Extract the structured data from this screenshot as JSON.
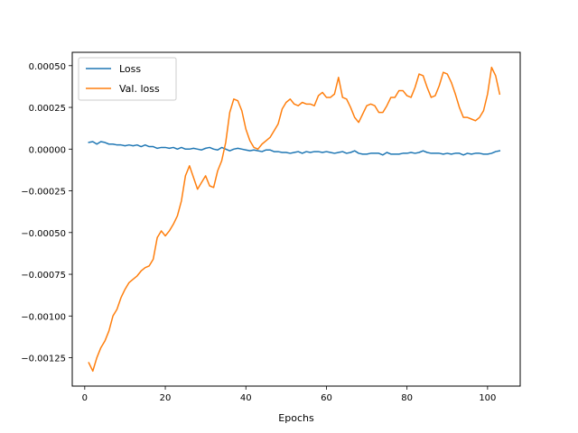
{
  "chart_data": {
    "type": "line",
    "title": "",
    "xlabel": "Epochs",
    "ylabel": "",
    "xlim": [
      -3.1,
      108.1
    ],
    "ylim": [
      -0.00142,
      0.00058
    ],
    "xticks": [
      0,
      20,
      40,
      60,
      80,
      100
    ],
    "xtick_labels": [
      "0",
      "20",
      "40",
      "60",
      "80",
      "100"
    ],
    "yticks": [
      -0.00125,
      -0.001,
      -0.00075,
      -0.0005,
      -0.00025,
      0,
      0.00025,
      0.0005
    ],
    "ytick_labels": [
      "−0.00125",
      "−0.00100",
      "−0.00075",
      "−0.00050",
      "−0.00025",
      "0.00000",
      "0.00025",
      "0.00050"
    ],
    "grid": false,
    "legend": "upper-left",
    "x": [
      1,
      2,
      3,
      4,
      5,
      6,
      7,
      8,
      9,
      10,
      11,
      12,
      13,
      14,
      15,
      16,
      17,
      18,
      19,
      20,
      21,
      22,
      23,
      24,
      25,
      26,
      27,
      28,
      29,
      30,
      31,
      32,
      33,
      34,
      35,
      36,
      37,
      38,
      39,
      40,
      41,
      42,
      43,
      44,
      45,
      46,
      47,
      48,
      49,
      50,
      51,
      52,
      53,
      54,
      55,
      56,
      57,
      58,
      59,
      60,
      61,
      62,
      63,
      64,
      65,
      66,
      67,
      68,
      69,
      70,
      71,
      72,
      73,
      74,
      75,
      76,
      77,
      78,
      79,
      80,
      81,
      82,
      83,
      84,
      85,
      86,
      87,
      88,
      89,
      90,
      91,
      92,
      93,
      94,
      95,
      96,
      97,
      98,
      99,
      100,
      101,
      102,
      103
    ],
    "series": [
      {
        "name": "Loss",
        "color": "#1f77b4",
        "values": [
          4e-05,
          4.5e-05,
          3e-05,
          4.5e-05,
          4e-05,
          3e-05,
          3e-05,
          2.5e-05,
          2.5e-05,
          2e-05,
          2.5e-05,
          2e-05,
          2.5e-05,
          1.5e-05,
          2.5e-05,
          1.5e-05,
          1.5e-05,
          5e-06,
          1e-05,
          1e-05,
          5e-06,
          1e-05,
          0.0,
          1e-05,
          0.0,
          0.0,
          5e-06,
          0.0,
          -5e-06,
          5e-06,
          1e-05,
          0.0,
          -5e-06,
          1e-05,
          0.0,
          -1e-05,
          0.0,
          5e-06,
          0.0,
          -5e-06,
          -1e-05,
          -5e-06,
          -1e-05,
          -1.5e-05,
          -5e-06,
          -5e-06,
          -1.5e-05,
          -1.5e-05,
          -2e-05,
          -2e-05,
          -2.5e-05,
          -2e-05,
          -1.5e-05,
          -2.5e-05,
          -1.5e-05,
          -2e-05,
          -1.5e-05,
          -1.5e-05,
          -2e-05,
          -1.5e-05,
          -2e-05,
          -2.5e-05,
          -2e-05,
          -1.5e-05,
          -2.5e-05,
          -2e-05,
          -1e-05,
          -2.5e-05,
          -3e-05,
          -3e-05,
          -2.5e-05,
          -2.5e-05,
          -2.5e-05,
          -3.5e-05,
          -2e-05,
          -3e-05,
          -3e-05,
          -3e-05,
          -2.5e-05,
          -2.5e-05,
          -2e-05,
          -2.5e-05,
          -2e-05,
          -1e-05,
          -2e-05,
          -2.5e-05,
          -2.5e-05,
          -2.5e-05,
          -3e-05,
          -2.5e-05,
          -3e-05,
          -2.5e-05,
          -2.5e-05,
          -3.5e-05,
          -2.5e-05,
          -3e-05,
          -2.5e-05,
          -2.5e-05,
          -3e-05,
          -3e-05,
          -2.5e-05,
          -1.5e-05,
          -1e-05
        ]
      },
      {
        "name": "Val. loss",
        "color": "#ff7f0e",
        "values": [
          -0.00128,
          -0.00133,
          -0.00125,
          -0.00119,
          -0.00115,
          -0.00109,
          -0.001,
          -0.00096,
          -0.00089,
          -0.00084,
          -0.0008,
          -0.00078,
          -0.00076,
          -0.00073,
          -0.00071,
          -0.0007,
          -0.00066,
          -0.00053,
          -0.00049,
          -0.00052,
          -0.00049,
          -0.00045,
          -0.0004,
          -0.00031,
          -0.00016,
          -0.0001,
          -0.00017,
          -0.00024,
          -0.0002,
          -0.00016,
          -0.00022,
          -0.00023,
          -0.00013,
          -7e-05,
          4e-05,
          0.00022,
          0.0003,
          0.00029,
          0.00023,
          0.00012,
          5e-05,
          1e-05,
          0.0,
          3e-05,
          5e-05,
          7e-05,
          0.00011,
          0.00015,
          0.00024,
          0.00028,
          0.0003,
          0.00027,
          0.00026,
          0.00028,
          0.00027,
          0.00027,
          0.00026,
          0.00032,
          0.00034,
          0.00031,
          0.00031,
          0.00033,
          0.00043,
          0.00031,
          0.0003,
          0.00025,
          0.00019,
          0.00016,
          0.00021,
          0.00026,
          0.00027,
          0.00026,
          0.00022,
          0.00022,
          0.00026,
          0.00031,
          0.00031,
          0.00035,
          0.00035,
          0.00032,
          0.00031,
          0.00037,
          0.00045,
          0.00044,
          0.00037,
          0.00031,
          0.00032,
          0.00038,
          0.00046,
          0.00045,
          0.0004,
          0.00033,
          0.00025,
          0.00019,
          0.00019,
          0.00018,
          0.00017,
          0.00019,
          0.00023,
          0.00033,
          0.00049,
          0.00044,
          0.00033
        ]
      }
    ]
  }
}
